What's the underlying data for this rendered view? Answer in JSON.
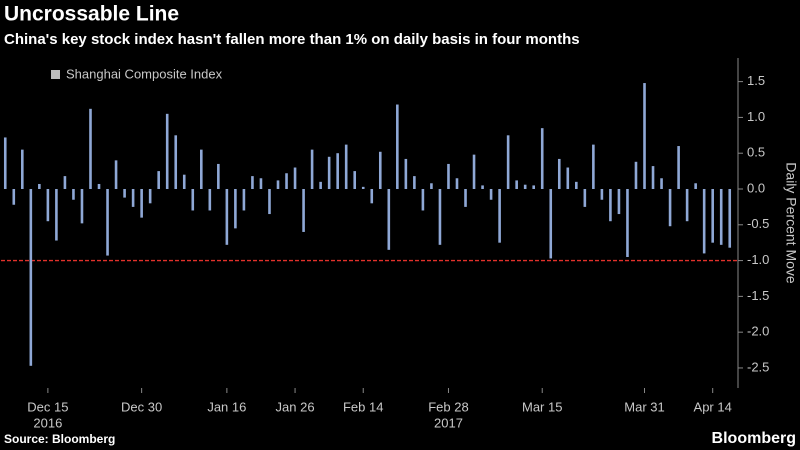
{
  "chart_data": {
    "type": "bar",
    "title": "Uncrossable Line",
    "subtitle": "China's key stock index hasn't fallen more than 1% on daily basis in four months",
    "y_axis_label": "Daily Percent Move",
    "source": "Source: Bloomberg",
    "brand": "Bloomberg",
    "categories": [
      null,
      null,
      null,
      null,
      null,
      "Dec 15",
      null,
      null,
      null,
      null,
      null,
      null,
      null,
      null,
      null,
      null,
      "Dec 30",
      null,
      null,
      null,
      null,
      null,
      null,
      null,
      null,
      null,
      "Jan 16",
      null,
      null,
      null,
      null,
      null,
      null,
      null,
      "Jan 26",
      null,
      null,
      null,
      null,
      null,
      null,
      null,
      "Feb 14",
      null,
      null,
      null,
      null,
      null,
      null,
      null,
      null,
      null,
      "Feb 28",
      null,
      null,
      null,
      null,
      null,
      null,
      null,
      null,
      null,
      null,
      "Mar 15",
      null,
      null,
      null,
      null,
      null,
      null,
      null,
      null,
      null,
      null,
      null,
      "Mar 31",
      null,
      null,
      null,
      null,
      null,
      null,
      null,
      "Apr 14",
      null,
      null
    ],
    "year_labels": [
      {
        "year": "2016",
        "under": "Dec 15"
      },
      {
        "year": "2017",
        "under": "Feb 28"
      }
    ],
    "series": [
      {
        "name": "Shanghai Composite Index",
        "color": "#8fa8d6",
        "values": [
          0.72,
          -0.22,
          0.55,
          -2.47,
          0.07,
          -0.45,
          -0.72,
          0.18,
          -0.15,
          -0.48,
          1.12,
          0.07,
          -0.93,
          0.4,
          -0.12,
          -0.25,
          -0.4,
          -0.2,
          0.25,
          1.05,
          0.75,
          0.2,
          -0.3,
          0.55,
          -0.3,
          0.35,
          -0.78,
          -0.55,
          -0.3,
          0.18,
          0.15,
          -0.35,
          0.12,
          0.22,
          0.3,
          -0.6,
          0.55,
          0.1,
          0.45,
          0.5,
          0.62,
          0.25,
          0.03,
          -0.2,
          0.52,
          -0.85,
          1.18,
          0.42,
          0.18,
          -0.3,
          0.08,
          -0.78,
          0.35,
          0.15,
          -0.25,
          0.48,
          0.05,
          -0.15,
          -0.75,
          0.75,
          0.12,
          0.06,
          0.05,
          0.85,
          -0.97,
          0.42,
          0.3,
          0.1,
          -0.25,
          0.62,
          -0.15,
          -0.45,
          -0.35,
          -0.95,
          0.38,
          1.48,
          0.32,
          0.15,
          -0.52,
          0.6,
          -0.45,
          0.08,
          -0.9,
          -0.75,
          -0.78,
          -0.82
        ]
      }
    ],
    "reference_line": {
      "value": -1,
      "color": "#e0312b"
    },
    "ylim": [
      -2.78,
      1.83
    ],
    "yticks": [
      1.5,
      {
        "value": 1,
        "label": "1.0"
      },
      0.5,
      {
        "value": 0,
        "label": "0.0"
      },
      -0.5,
      {
        "value": -1,
        "label": "-1.0"
      },
      -1.5,
      {
        "value": -2,
        "label": "-2.0"
      },
      -2.5
    ],
    "grid": false
  }
}
